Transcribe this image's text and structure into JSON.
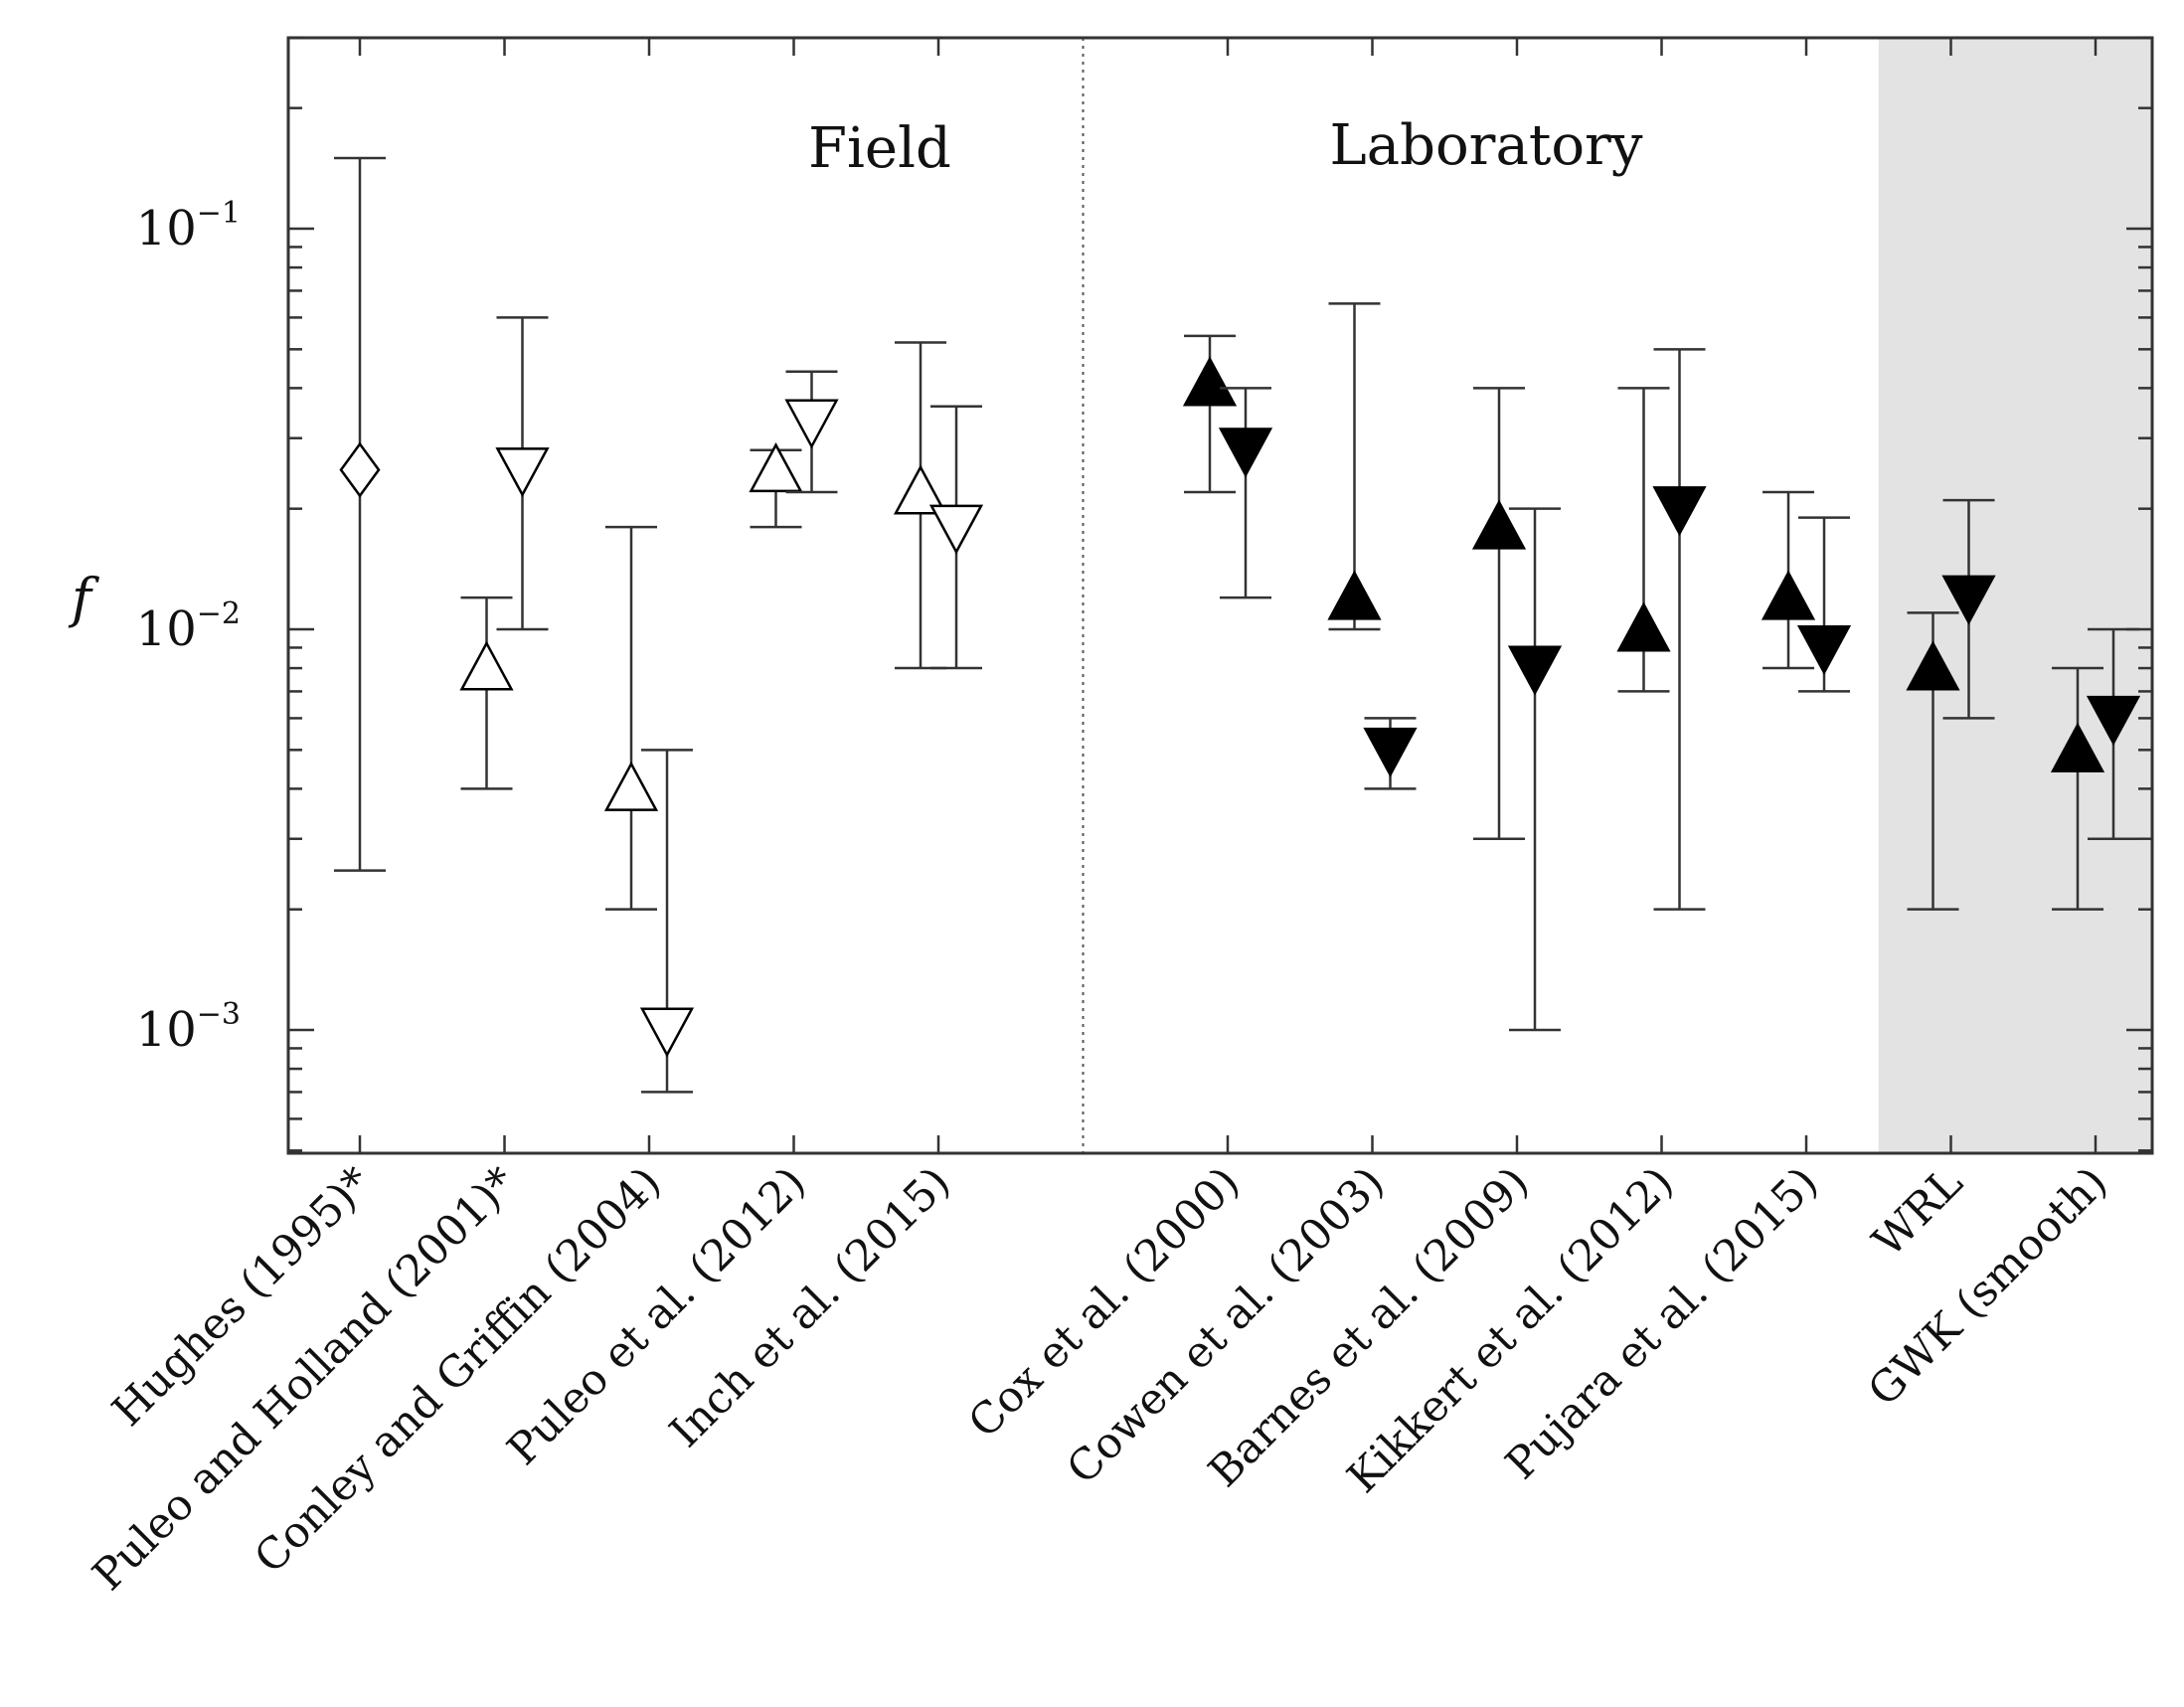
{
  "chart_data": {
    "type": "scatter",
    "yscale": "log",
    "ylabel": "f",
    "ylim": [
      0.0005,
      0.3
    ],
    "yticks": [
      {
        "value": 0.001,
        "base": "10",
        "exp": "−3"
      },
      {
        "value": 0.01,
        "base": "10",
        "exp": "−2"
      },
      {
        "value": 0.1,
        "base": "10",
        "exp": "−1"
      }
    ],
    "categories": [
      "Hughes (1995)*",
      "Puleo and Holland (2001)*",
      "Conley and Griffin (2004)",
      "Puleo et al. (2012)",
      "Inch et al. (2015)",
      "Cox et al. (2000)",
      "Cowen et al. (2003)",
      "Barnes et al. (2009)",
      "Kikkert et al. (2012)",
      "Pujara et al. (2015)",
      "WRL",
      "GWK (smooth)"
    ],
    "annotations": [
      {
        "text": "Field"
      },
      {
        "text": "Laboratory"
      }
    ],
    "shaded_categories": [
      "WRL",
      "GWK (smooth)"
    ],
    "colors": {
      "axis": "#333333",
      "errorbar": "#333333",
      "shade": "#e3e3e3",
      "open_fill": "#ffffff",
      "filled": "#000000"
    },
    "series": [
      {
        "name": "Hughes (1995)",
        "category": 0,
        "marker": "diamond",
        "filled": false,
        "value": 0.025,
        "low": 0.0025,
        "high": 0.15
      },
      {
        "name": "Puleo and Holland (2001) up",
        "category": 1,
        "marker": "triangle-up",
        "filled": false,
        "value": 0.008,
        "low": 0.004,
        "high": 0.012
      },
      {
        "name": "Puleo and Holland (2001) down",
        "category": 1,
        "marker": "triangle-down",
        "filled": false,
        "value": 0.025,
        "low": 0.01,
        "high": 0.06
      },
      {
        "name": "Conley and Griffin (2004) up",
        "category": 2,
        "marker": "triangle-up",
        "filled": false,
        "value": 0.004,
        "low": 0.002,
        "high": 0.018
      },
      {
        "name": "Conley and Griffin (2004) down",
        "category": 2,
        "marker": "triangle-down",
        "filled": false,
        "value": 0.001,
        "low": 0.0007,
        "high": 0.005
      },
      {
        "name": "Puleo et al. (2012) up",
        "category": 3,
        "marker": "triangle-up",
        "filled": false,
        "value": 0.025,
        "low": 0.018,
        "high": 0.028
      },
      {
        "name": "Puleo et al. (2012) down",
        "category": 3,
        "marker": "triangle-down",
        "filled": false,
        "value": 0.033,
        "low": 0.022,
        "high": 0.044
      },
      {
        "name": "Inch et al. (2015) up",
        "category": 4,
        "marker": "triangle-up",
        "filled": false,
        "value": 0.022,
        "low": 0.008,
        "high": 0.052
      },
      {
        "name": "Inch et al. (2015) down",
        "category": 4,
        "marker": "triangle-down",
        "filled": false,
        "value": 0.018,
        "low": 0.008,
        "high": 0.036
      },
      {
        "name": "Cox et al. (2000) up",
        "category": 5,
        "marker": "triangle-up",
        "filled": true,
        "value": 0.041,
        "low": 0.022,
        "high": 0.054
      },
      {
        "name": "Cox et al. (2000) down",
        "category": 5,
        "marker": "triangle-down",
        "filled": true,
        "value": 0.028,
        "low": 0.012,
        "high": 0.04
      },
      {
        "name": "Cowen et al. (2003) up",
        "category": 6,
        "marker": "triangle-up",
        "filled": true,
        "value": 0.012,
        "low": 0.01,
        "high": 0.065
      },
      {
        "name": "Cowen et al. (2003) down",
        "category": 6,
        "marker": "triangle-down",
        "filled": true,
        "value": 0.005,
        "low": 0.004,
        "high": 0.006
      },
      {
        "name": "Barnes et al. (2009) up",
        "category": 7,
        "marker": "triangle-up",
        "filled": true,
        "value": 0.018,
        "low": 0.003,
        "high": 0.04
      },
      {
        "name": "Barnes et al. (2009) down",
        "category": 7,
        "marker": "triangle-down",
        "filled": true,
        "value": 0.008,
        "low": 0.001,
        "high": 0.02
      },
      {
        "name": "Kikkert et al. (2012) up",
        "category": 8,
        "marker": "triangle-up",
        "filled": true,
        "value": 0.01,
        "low": 0.007,
        "high": 0.04
      },
      {
        "name": "Kikkert et al. (2012) down",
        "category": 8,
        "marker": "triangle-down",
        "filled": true,
        "value": 0.02,
        "low": 0.002,
        "high": 0.05
      },
      {
        "name": "Pujara et al. (2015) up",
        "category": 9,
        "marker": "triangle-up",
        "filled": true,
        "value": 0.012,
        "low": 0.008,
        "high": 0.022
      },
      {
        "name": "Pujara et al. (2015) down",
        "category": 9,
        "marker": "triangle-down",
        "filled": true,
        "value": 0.009,
        "low": 0.007,
        "high": 0.019
      },
      {
        "name": "WRL up",
        "category": 10,
        "marker": "triangle-up",
        "filled": true,
        "value": 0.008,
        "low": 0.002,
        "high": 0.011
      },
      {
        "name": "WRL down",
        "category": 10,
        "marker": "triangle-down",
        "filled": true,
        "value": 0.012,
        "low": 0.006,
        "high": 0.021
      },
      {
        "name": "GWK (smooth) up",
        "category": 11,
        "marker": "triangle-up",
        "filled": true,
        "value": 0.005,
        "low": 0.002,
        "high": 0.008
      },
      {
        "name": "GWK (smooth) down",
        "category": 11,
        "marker": "triangle-down",
        "filled": true,
        "value": 0.006,
        "low": 0.003,
        "high": 0.01
      }
    ]
  }
}
